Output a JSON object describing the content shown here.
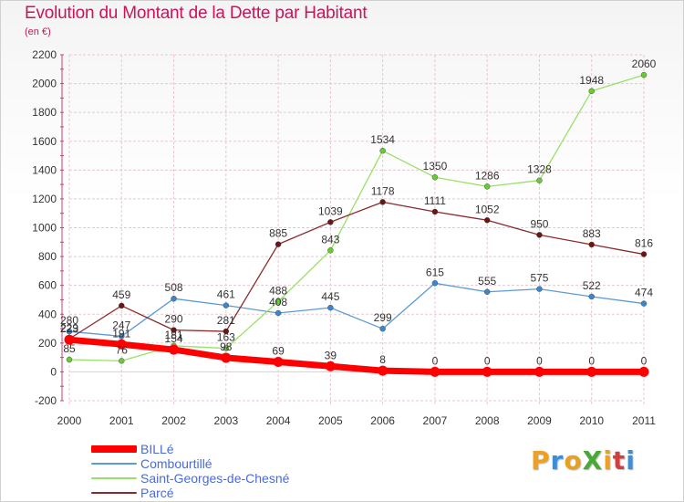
{
  "title": "Evolution du Montant de la Dette par Habitant",
  "subtitle": "(en €)",
  "logo": {
    "text": "ProXiti",
    "letter_colors": [
      "#f0a020",
      "#3a8fd8",
      "#e8a020",
      "#4aa838",
      "#f0a020",
      "#d04040",
      "#3a8fd8"
    ]
  },
  "colors": {
    "grid": "#e8c8d0",
    "axis_text": "#333333",
    "label_text": "#333333"
  },
  "chart_data": {
    "type": "line",
    "x": [
      "2000",
      "2001",
      "2002",
      "2003",
      "2004",
      "2005",
      "2006",
      "2007",
      "2008",
      "2009",
      "2010",
      "2011"
    ],
    "ylim": [
      -200,
      2200
    ],
    "yticks": [
      -200,
      0,
      200,
      400,
      600,
      800,
      1000,
      1200,
      1400,
      1600,
      1800,
      2000,
      2200
    ],
    "grid": true,
    "legend_position": "bottom-left",
    "series": [
      {
        "name": "BILLé",
        "color": "#ff0000",
        "width": 7,
        "marker": "#ff0000",
        "values": [
          223,
          191,
          154,
          98,
          69,
          39,
          8,
          0,
          0,
          0,
          0,
          0
        ],
        "labels": [
          "223",
          "191",
          "154",
          "98",
          "69",
          "39",
          "8",
          "0",
          "0",
          "0",
          "0",
          "0"
        ]
      },
      {
        "name": "Combourtillé",
        "color": "#5b9bd5",
        "width": 1.3,
        "marker": "#3d86cc",
        "values": [
          280,
          247,
          508,
          461,
          408,
          445,
          299,
          615,
          555,
          575,
          522,
          474
        ],
        "labels": [
          "280",
          "247",
          "508",
          "461",
          "408",
          "445",
          "299",
          "615",
          "555",
          "575",
          "522",
          "474"
        ]
      },
      {
        "name": "Saint-Georges-de-Chesné",
        "color": "#99e066",
        "width": 1.3,
        "marker": "#66cc33",
        "values": [
          85,
          76,
          181,
          163,
          488,
          843,
          1534,
          1350,
          1286,
          1328,
          1948,
          2060
        ],
        "labels": [
          "85",
          "76",
          "181",
          "163",
          "488",
          "843",
          "1534",
          "1350",
          "1286",
          "1328",
          "1948",
          "2060"
        ]
      },
      {
        "name": "Parcé",
        "color": "#8b2a2a",
        "width": 1.3,
        "marker": "#6b1515",
        "values": [
          229,
          459,
          290,
          281,
          885,
          1039,
          1178,
          1111,
          1052,
          950,
          883,
          816
        ],
        "labels": [
          "229",
          "459",
          "290",
          "281",
          "885",
          "1039",
          "1178",
          "1111",
          "1052",
          "950",
          "883",
          "816"
        ]
      }
    ]
  }
}
